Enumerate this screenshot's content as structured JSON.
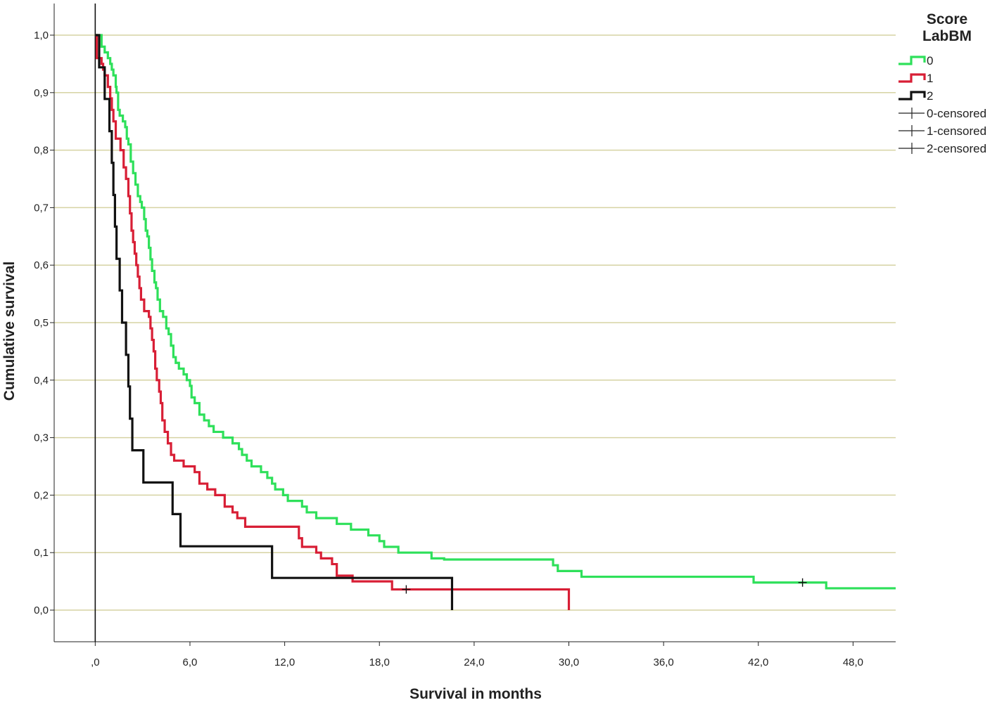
{
  "chart_data": {
    "type": "line",
    "subtype": "kaplan-meier step",
    "xlabel": "Survival in months",
    "ylabel": "Cumulative survival",
    "xlim": [
      -2.6,
      50.7
    ],
    "ylim": [
      -0.055,
      1.055
    ],
    "x_ticks": [
      0,
      6,
      12,
      18,
      24,
      30,
      36,
      42,
      48
    ],
    "x_tick_labels": [
      ",0",
      "6,0",
      "12,0",
      "18,0",
      "24,0",
      "30,0",
      "36,0",
      "42,0",
      "48,0"
    ],
    "y_ticks": [
      0,
      0.1,
      0.2,
      0.3,
      0.4,
      0.5,
      0.6,
      0.7,
      0.8,
      0.9,
      1.0
    ],
    "y_tick_labels": [
      "0,0",
      "0,1",
      "0,2",
      "0,3",
      "0,4",
      "0,5",
      "0,6",
      "0,7",
      "0,8",
      "0,9",
      "1,0"
    ],
    "grid": "horizontal",
    "grid_color": "#d6d3a3",
    "reference_line_x": 0,
    "legend": {
      "title_line1": "Score",
      "title_line2": "LabBM",
      "position": "top-right",
      "entries": [
        "0",
        "1",
        "2",
        "0-censored",
        "1-censored",
        "2-censored"
      ]
    },
    "series": [
      {
        "name": "0",
        "color": "#2ee05a",
        "points": [
          [
            0,
            1.0
          ],
          [
            0.4,
            0.98
          ],
          [
            0.6,
            0.97
          ],
          [
            0.8,
            0.96
          ],
          [
            0.95,
            0.95
          ],
          [
            1.05,
            0.94
          ],
          [
            1.15,
            0.93
          ],
          [
            1.3,
            0.91
          ],
          [
            1.35,
            0.9
          ],
          [
            1.45,
            0.87
          ],
          [
            1.55,
            0.86
          ],
          [
            1.75,
            0.85
          ],
          [
            1.9,
            0.84
          ],
          [
            2.0,
            0.82
          ],
          [
            2.1,
            0.81
          ],
          [
            2.25,
            0.78
          ],
          [
            2.4,
            0.76
          ],
          [
            2.55,
            0.74
          ],
          [
            2.7,
            0.72
          ],
          [
            2.85,
            0.71
          ],
          [
            2.95,
            0.7
          ],
          [
            3.1,
            0.68
          ],
          [
            3.2,
            0.66
          ],
          [
            3.3,
            0.65
          ],
          [
            3.4,
            0.63
          ],
          [
            3.5,
            0.61
          ],
          [
            3.6,
            0.59
          ],
          [
            3.75,
            0.57
          ],
          [
            3.85,
            0.56
          ],
          [
            3.95,
            0.54
          ],
          [
            4.1,
            0.52
          ],
          [
            4.3,
            0.51
          ],
          [
            4.5,
            0.49
          ],
          [
            4.65,
            0.48
          ],
          [
            4.8,
            0.46
          ],
          [
            4.95,
            0.44
          ],
          [
            5.1,
            0.43
          ],
          [
            5.3,
            0.42
          ],
          [
            5.6,
            0.41
          ],
          [
            5.8,
            0.4
          ],
          [
            6.0,
            0.39
          ],
          [
            6.1,
            0.37
          ],
          [
            6.3,
            0.36
          ],
          [
            6.6,
            0.34
          ],
          [
            6.9,
            0.33
          ],
          [
            7.2,
            0.32
          ],
          [
            7.5,
            0.31
          ],
          [
            8.1,
            0.3
          ],
          [
            8.7,
            0.29
          ],
          [
            9.1,
            0.28
          ],
          [
            9.3,
            0.27
          ],
          [
            9.6,
            0.26
          ],
          [
            9.9,
            0.25
          ],
          [
            10.5,
            0.24
          ],
          [
            10.9,
            0.23
          ],
          [
            11.2,
            0.22
          ],
          [
            11.4,
            0.21
          ],
          [
            11.9,
            0.2
          ],
          [
            12.2,
            0.19
          ],
          [
            13.1,
            0.18
          ],
          [
            13.4,
            0.17
          ],
          [
            14.0,
            0.16
          ],
          [
            15.3,
            0.15
          ],
          [
            16.2,
            0.14
          ],
          [
            17.3,
            0.13
          ],
          [
            18.0,
            0.12
          ],
          [
            18.3,
            0.11
          ],
          [
            19.2,
            0.1
          ],
          [
            21.3,
            0.09
          ],
          [
            22.1,
            0.088
          ],
          [
            29.0,
            0.078
          ],
          [
            29.3,
            0.068
          ],
          [
            30.8,
            0.058
          ],
          [
            41.7,
            0.048
          ],
          [
            46.3,
            0.038
          ],
          [
            50.7,
            0.038
          ]
        ],
        "censored": [
          [
            44.8,
            0.048
          ]
        ]
      },
      {
        "name": "1",
        "color": "#d81e35",
        "points": [
          [
            0,
            1.0
          ],
          [
            0.1,
            0.96
          ],
          [
            0.4,
            0.95
          ],
          [
            0.5,
            0.94
          ],
          [
            0.6,
            0.93
          ],
          [
            0.8,
            0.91
          ],
          [
            0.95,
            0.89
          ],
          [
            1.05,
            0.87
          ],
          [
            1.15,
            0.85
          ],
          [
            1.3,
            0.82
          ],
          [
            1.6,
            0.8
          ],
          [
            1.8,
            0.77
          ],
          [
            1.95,
            0.75
          ],
          [
            2.1,
            0.72
          ],
          [
            2.2,
            0.69
          ],
          [
            2.3,
            0.66
          ],
          [
            2.4,
            0.64
          ],
          [
            2.5,
            0.62
          ],
          [
            2.6,
            0.6
          ],
          [
            2.7,
            0.58
          ],
          [
            2.8,
            0.56
          ],
          [
            2.9,
            0.54
          ],
          [
            3.1,
            0.52
          ],
          [
            3.4,
            0.51
          ],
          [
            3.5,
            0.49
          ],
          [
            3.6,
            0.47
          ],
          [
            3.7,
            0.45
          ],
          [
            3.8,
            0.42
          ],
          [
            3.9,
            0.4
          ],
          [
            4.05,
            0.38
          ],
          [
            4.15,
            0.36
          ],
          [
            4.25,
            0.33
          ],
          [
            4.4,
            0.31
          ],
          [
            4.6,
            0.29
          ],
          [
            4.8,
            0.27
          ],
          [
            5.0,
            0.26
          ],
          [
            5.6,
            0.25
          ],
          [
            6.3,
            0.24
          ],
          [
            6.6,
            0.22
          ],
          [
            7.1,
            0.21
          ],
          [
            7.6,
            0.2
          ],
          [
            8.2,
            0.18
          ],
          [
            8.7,
            0.17
          ],
          [
            9.0,
            0.16
          ],
          [
            9.5,
            0.145
          ],
          [
            12.9,
            0.125
          ],
          [
            13.1,
            0.11
          ],
          [
            14.0,
            0.1
          ],
          [
            14.3,
            0.09
          ],
          [
            15.0,
            0.08
          ],
          [
            15.3,
            0.06
          ],
          [
            16.3,
            0.05
          ],
          [
            18.8,
            0.036
          ],
          [
            30.0,
            0.0
          ]
        ],
        "censored": [
          [
            19.7,
            0.036
          ]
        ]
      },
      {
        "name": "2",
        "color": "#111111",
        "points": [
          [
            0,
            1.0
          ],
          [
            0.25,
            0.944
          ],
          [
            0.6,
            0.889
          ],
          [
            0.9,
            0.833
          ],
          [
            1.05,
            0.778
          ],
          [
            1.15,
            0.722
          ],
          [
            1.25,
            0.667
          ],
          [
            1.35,
            0.611
          ],
          [
            1.55,
            0.556
          ],
          [
            1.7,
            0.5
          ],
          [
            1.95,
            0.444
          ],
          [
            2.1,
            0.389
          ],
          [
            2.2,
            0.333
          ],
          [
            2.35,
            0.278
          ],
          [
            3.05,
            0.222
          ],
          [
            4.9,
            0.167
          ],
          [
            5.4,
            0.111
          ],
          [
            11.2,
            0.056
          ],
          [
            22.6,
            0.0
          ]
        ],
        "censored": []
      }
    ]
  }
}
